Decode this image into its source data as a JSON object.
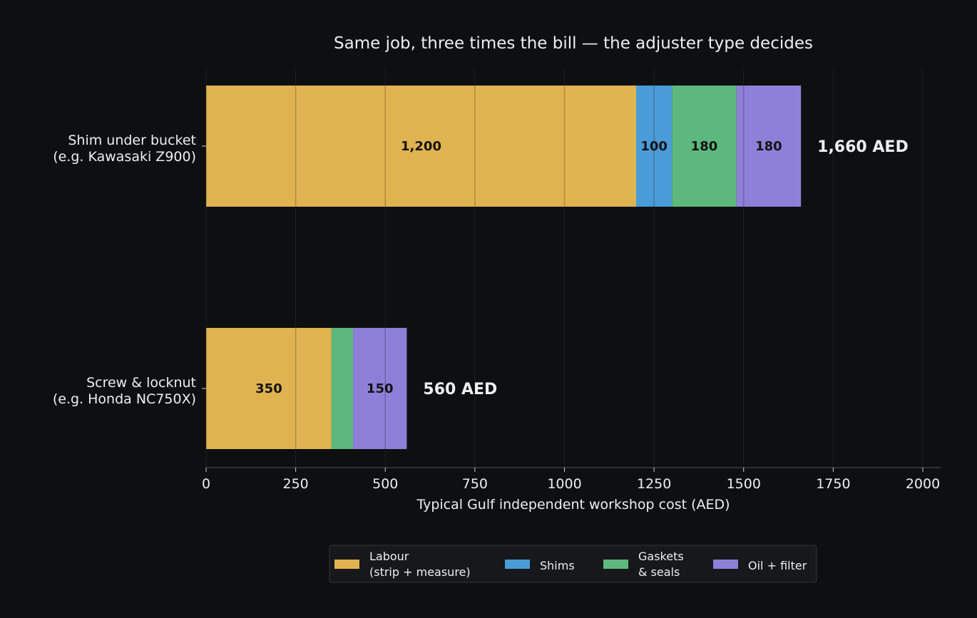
{
  "chart_data": {
    "type": "bar",
    "orientation": "horizontal",
    "stacked": true,
    "title": "Same job, three times the bill — the adjuster type decides",
    "xlabel": "Typical Gulf independent workshop cost (AED)",
    "ylabel": "",
    "xlim": [
      0,
      2050
    ],
    "xticks": [
      0,
      250,
      500,
      750,
      1000,
      1250,
      1500,
      1750,
      2000
    ],
    "grid": "vertical",
    "legend_position": "bottom-center",
    "categories": [
      [
        "Shim under bucket",
        "(e.g. Kawasaki Z900)"
      ],
      [
        "Screw & locknut",
        "(e.g. Honda NC750X)"
      ]
    ],
    "series": [
      {
        "name": "Labour\n(strip + measure)",
        "color": "#e0b351",
        "values": [
          1200,
          350
        ],
        "labels": [
          "1,200",
          "350"
        ]
      },
      {
        "name": "Shims",
        "color": "#4a9cd8",
        "values": [
          100,
          0
        ],
        "labels": [
          "100",
          ""
        ]
      },
      {
        "name": "Gaskets\n& seals",
        "color": "#5cb87c",
        "values": [
          180,
          60
        ],
        "labels": [
          "180",
          ""
        ]
      },
      {
        "name": "Oil + filter",
        "color": "#8e7fd9",
        "values": [
          180,
          150
        ],
        "labels": [
          "180",
          "150"
        ]
      }
    ],
    "totals": [
      "1,660 AED",
      "560 AED"
    ]
  },
  "colors": {
    "background": "#0e0f11",
    "text": "#eeeeee",
    "grid": "#2a2b2e",
    "legend_bg": "#17181b",
    "legend_border": "#333538",
    "segment_label": "#141414"
  }
}
